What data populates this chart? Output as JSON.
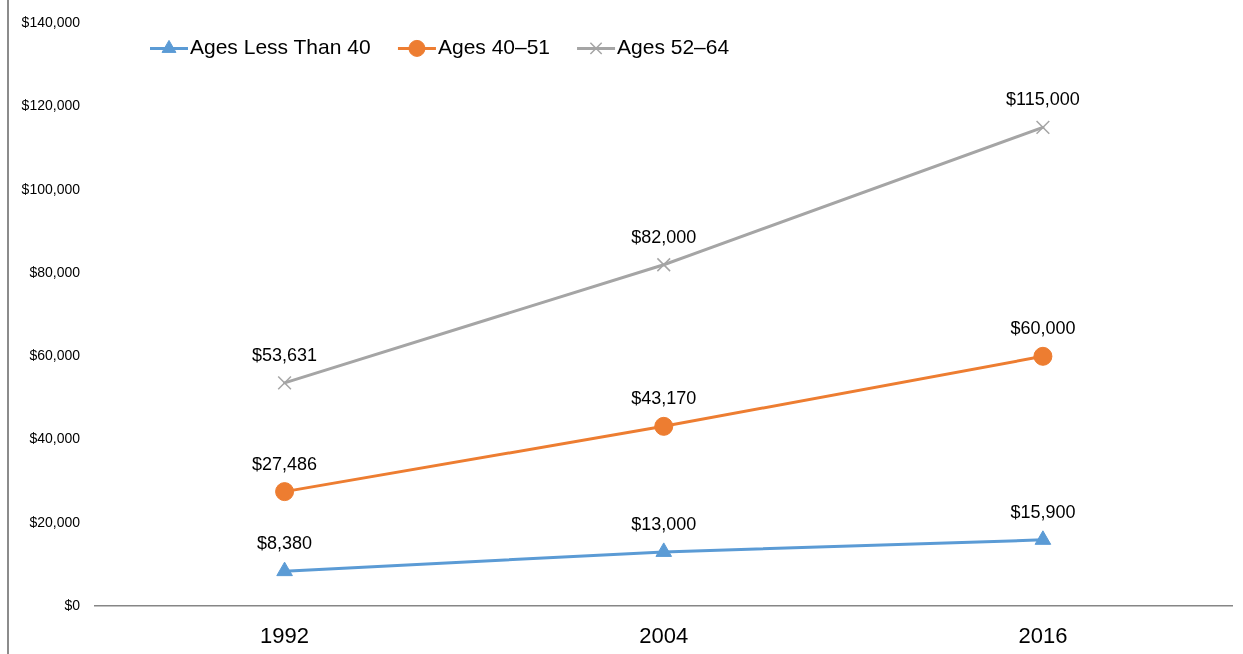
{
  "chart_data": {
    "type": "line",
    "categories": [
      "1992",
      "2004",
      "2016"
    ],
    "series": [
      {
        "name": "Ages Less Than 40",
        "color": "#5b9bd5",
        "marker": "triangle",
        "values": [
          8380,
          13000,
          15900
        ],
        "value_labels": [
          "$8,380",
          "$13,000",
          "$15,900"
        ]
      },
      {
        "name": "Ages 40–51",
        "color": "#ed7d31",
        "marker": "circle",
        "values": [
          27486,
          43170,
          60000
        ],
        "value_labels": [
          "$27,486",
          "$43,170",
          "$60,000"
        ]
      },
      {
        "name": "Ages 52–64",
        "color": "#a5a5a5",
        "marker": "cross",
        "values": [
          53631,
          82000,
          115000
        ],
        "value_labels": [
          "$53,631",
          "$82,000",
          "$115,000"
        ]
      }
    ],
    "ylim": [
      0,
      140000
    ],
    "yticks": [
      {
        "value": 0,
        "label": "$0"
      },
      {
        "value": 20000,
        "label": "$20,000"
      },
      {
        "value": 40000,
        "label": "$40,000"
      },
      {
        "value": 60000,
        "label": "$60,000"
      },
      {
        "value": 80000,
        "label": "$80,000"
      },
      {
        "value": 100000,
        "label": "$100,000"
      },
      {
        "value": 120000,
        "label": "$120,000"
      },
      {
        "value": 140000,
        "label": "$140,000"
      }
    ],
    "legend": "top left"
  }
}
